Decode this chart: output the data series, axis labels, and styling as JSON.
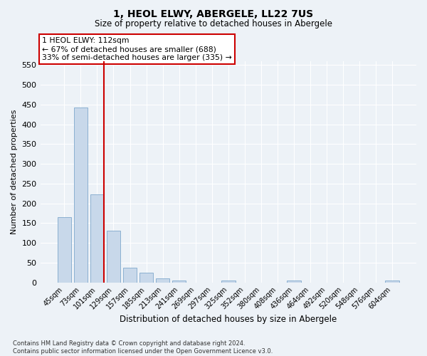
{
  "title": "1, HEOL ELWY, ABERGELE, LL22 7US",
  "subtitle": "Size of property relative to detached houses in Abergele",
  "xlabel": "Distribution of detached houses by size in Abergele",
  "ylabel": "Number of detached properties",
  "categories": [
    "45sqm",
    "73sqm",
    "101sqm",
    "129sqm",
    "157sqm",
    "185sqm",
    "213sqm",
    "241sqm",
    "269sqm",
    "297sqm",
    "325sqm",
    "352sqm",
    "380sqm",
    "408sqm",
    "436sqm",
    "464sqm",
    "492sqm",
    "520sqm",
    "548sqm",
    "576sqm",
    "604sqm"
  ],
  "values": [
    165,
    443,
    222,
    130,
    37,
    25,
    10,
    5,
    0,
    0,
    5,
    0,
    0,
    0,
    5,
    0,
    0,
    0,
    0,
    0,
    5
  ],
  "bar_color": "#c8d8ea",
  "bar_edge_color": "#7ea8cc",
  "vline_after_index": 2,
  "vline_color": "#cc0000",
  "annotation_text": "1 HEOL ELWY: 112sqm\n← 67% of detached houses are smaller (688)\n33% of semi-detached houses are larger (335) →",
  "annotation_box_color": "#ffffff",
  "annotation_box_edge": "#cc0000",
  "ylim": [
    0,
    560
  ],
  "yticks": [
    0,
    50,
    100,
    150,
    200,
    250,
    300,
    350,
    400,
    450,
    500,
    550
  ],
  "footnote": "Contains HM Land Registry data © Crown copyright and database right 2024.\nContains public sector information licensed under the Open Government Licence v3.0.",
  "background_color": "#edf2f7",
  "grid_color": "#ffffff"
}
